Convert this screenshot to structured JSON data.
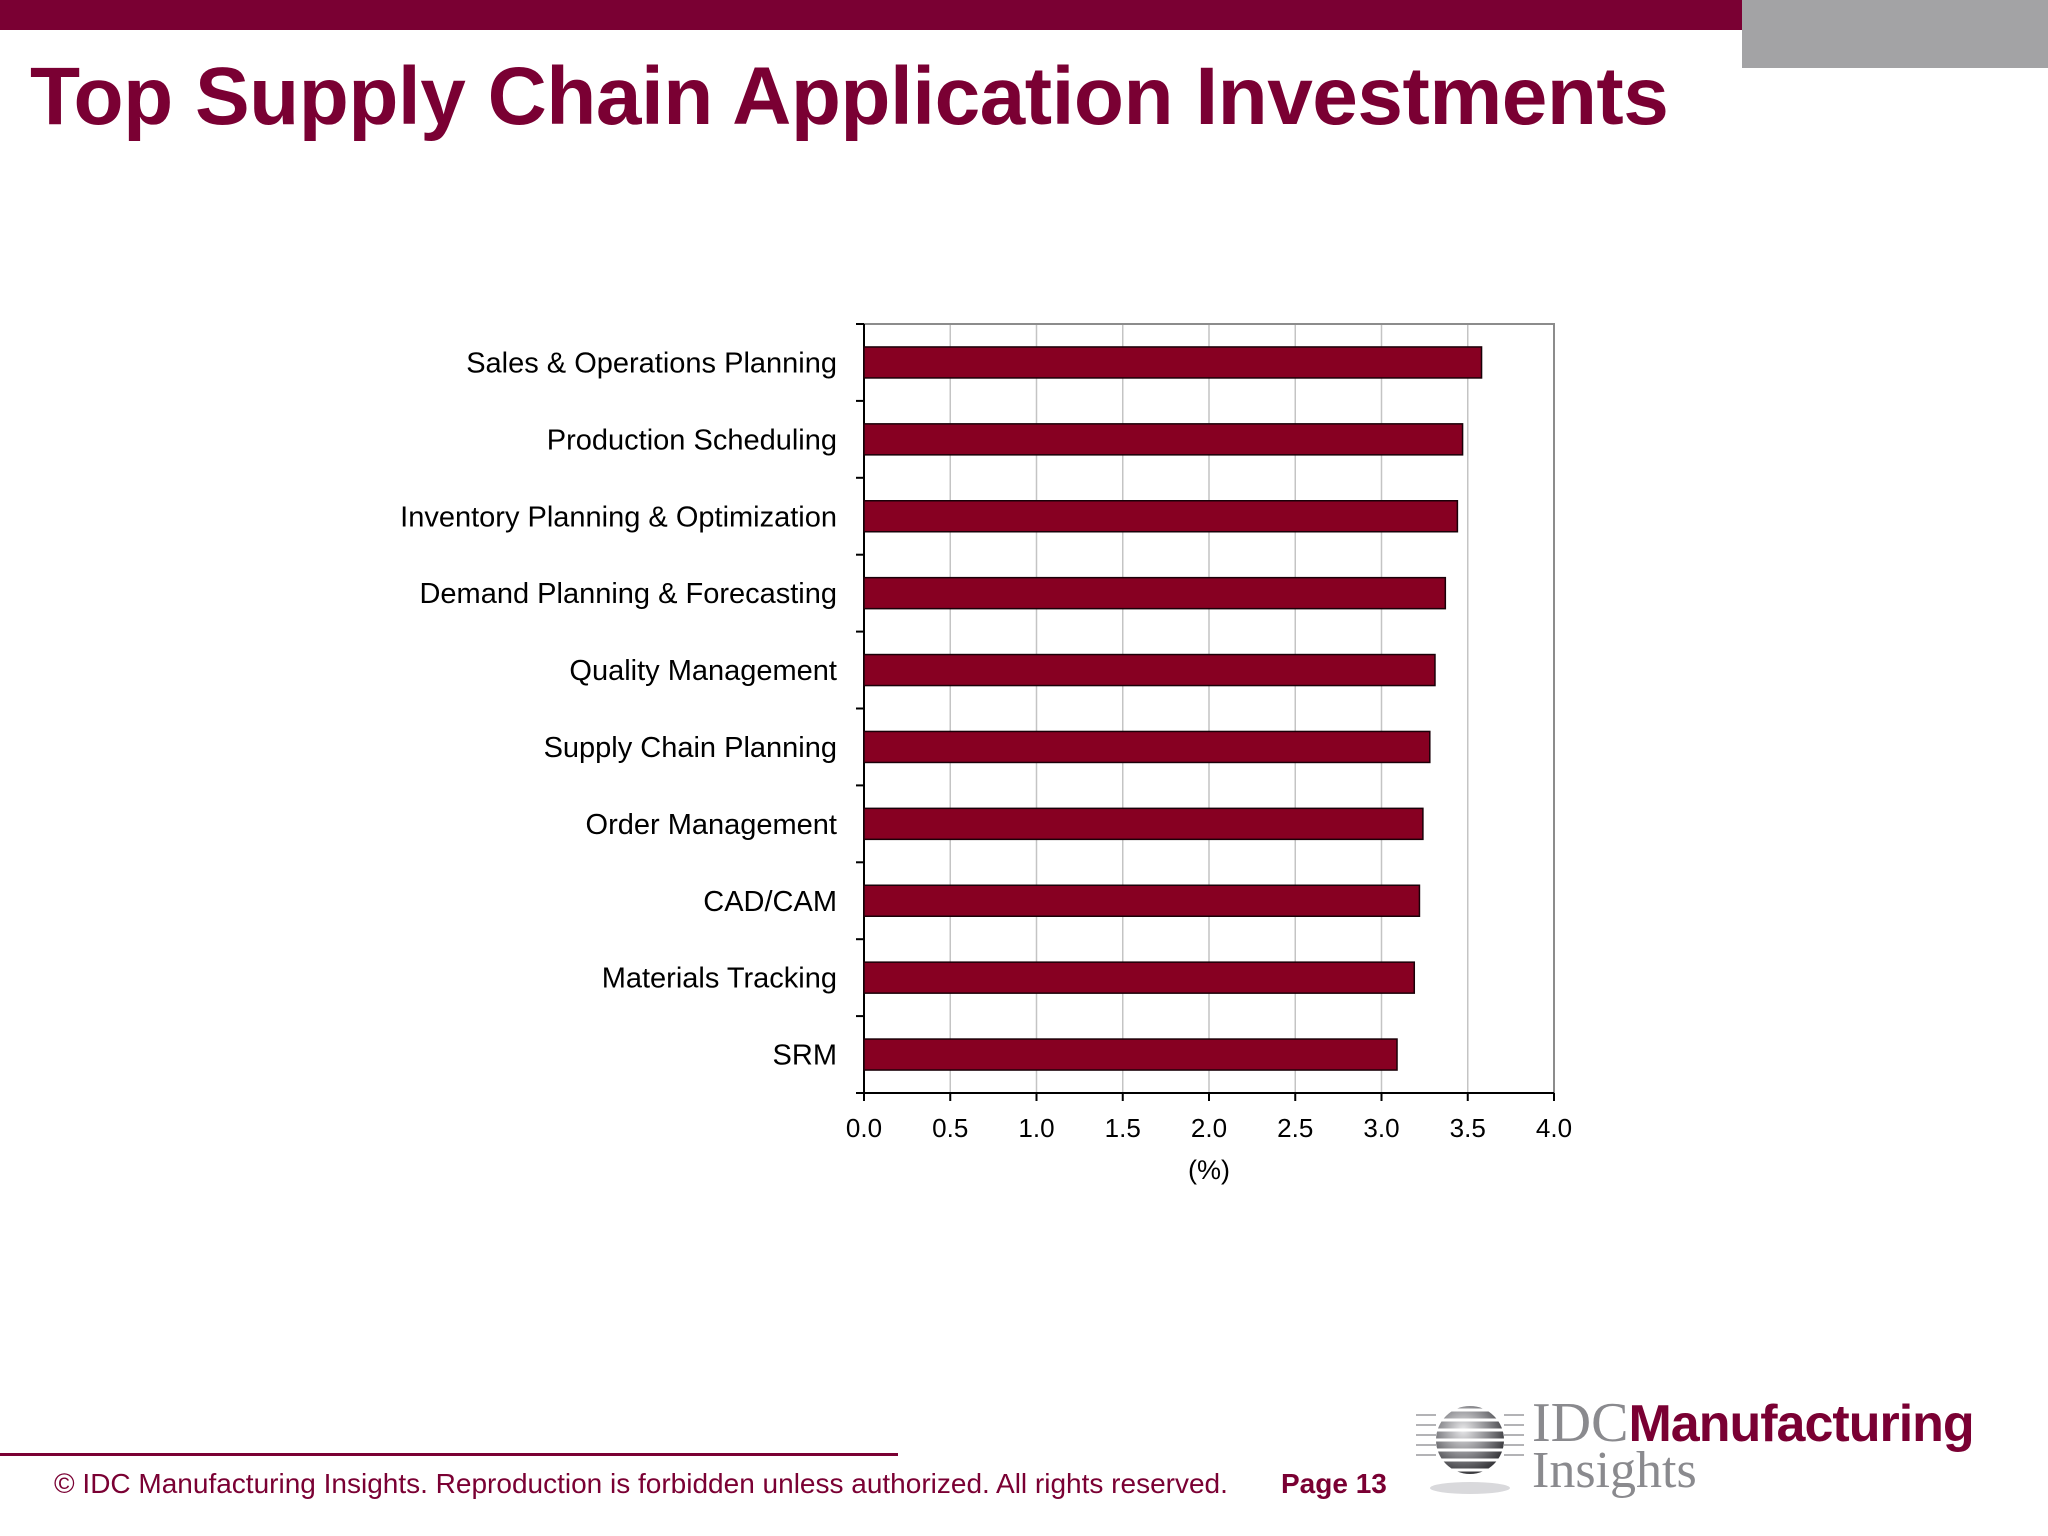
{
  "header": {
    "title": "Top Supply Chain Application Investments"
  },
  "chart_data": {
    "type": "bar",
    "orientation": "horizontal",
    "categories": [
      "Sales & Operations Planning",
      "Production Scheduling",
      "Inventory Planning & Optimization",
      "Demand Planning & Forecasting",
      "Quality Management",
      "Supply Chain Planning",
      "Order Management",
      "CAD/CAM",
      "Materials Tracking",
      "SRM"
    ],
    "values": [
      3.58,
      3.47,
      3.44,
      3.37,
      3.31,
      3.28,
      3.24,
      3.22,
      3.19,
      3.09
    ],
    "xlabel": "(%)",
    "xlim": [
      0,
      4
    ],
    "xticks": [
      "0.0",
      "0.5",
      "1.0",
      "1.5",
      "2.0",
      "2.5",
      "3.0",
      "3.5",
      "4.0"
    ],
    "grid": true,
    "bar_color": "#870022"
  },
  "footer": {
    "copyright": "© IDC Manufacturing Insights. Reproduction is forbidden unless authorized. All rights reserved.",
    "page": "Page 13"
  },
  "logo": {
    "idc": "IDC",
    "manufacturing": "Manufacturing",
    "insights": "Insights"
  },
  "colors": {
    "brand": "#7a0033",
    "gray": "#a3a3a5"
  }
}
